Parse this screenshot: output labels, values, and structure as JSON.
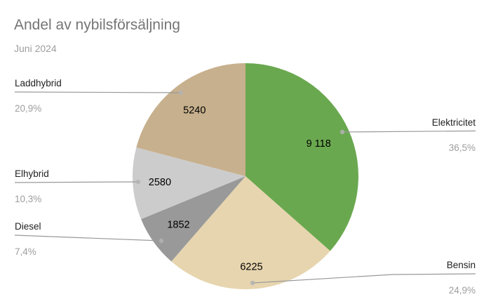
{
  "header": {
    "title": "Andel av nybilsförsäljning",
    "subtitle": "Juni 2024"
  },
  "chart_data": {
    "type": "pie",
    "title": "Andel av nybilsförsäljning",
    "subtitle": "Juni 2024",
    "direction": "clockwise",
    "start_angle_deg": 0,
    "legend_position": "outside-callouts",
    "slices": [
      {
        "label": "Elektricitet",
        "value": 9118,
        "value_label": "9 118",
        "percent": 36.5,
        "percent_label": "36,5%",
        "color": "#6aa84f"
      },
      {
        "label": "Bensin",
        "value": 6225,
        "value_label": "6225",
        "percent": 24.9,
        "percent_label": "24,9%",
        "color": "#e7d5af"
      },
      {
        "label": "Diesel",
        "value": 1852,
        "value_label": "1852",
        "percent": 7.4,
        "percent_label": "7,4%",
        "color": "#999999"
      },
      {
        "label": "Elhybrid",
        "value": 2580,
        "value_label": "2580",
        "percent": 10.3,
        "percent_label": "10,3%",
        "color": "#cccccc"
      },
      {
        "label": "Laddhybrid",
        "value": 5240,
        "value_label": "5240",
        "percent": 20.9,
        "percent_label": "20,9%",
        "color": "#c7b08d"
      }
    ],
    "colors": {
      "background": "#ffffff",
      "title_text": "#757575",
      "subtitle_text": "#9e9e9e",
      "slice_value_text": "#000000",
      "callout_name_text": "#212121",
      "callout_percent_text": "#9e9e9e",
      "leader_line": "#999999",
      "leader_dot": "#b3b3b3"
    }
  }
}
